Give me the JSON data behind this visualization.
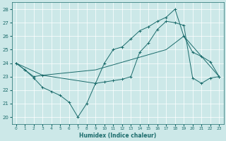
{
  "xlabel": "Humidex (Indice chaleur)",
  "bg_color": "#cce8e8",
  "grid_color": "#ffffff",
  "line_color": "#1a6b6b",
  "xlim": [
    -0.5,
    23.5
  ],
  "ylim": [
    19.5,
    28.5
  ],
  "yticks": [
    20,
    21,
    22,
    23,
    24,
    25,
    26,
    27,
    28
  ],
  "xticks": [
    0,
    1,
    2,
    3,
    4,
    5,
    6,
    7,
    8,
    9,
    10,
    11,
    12,
    13,
    14,
    15,
    16,
    17,
    18,
    19,
    20,
    21,
    22,
    23
  ],
  "line1_x": [
    0,
    1,
    2,
    3,
    4,
    5,
    6,
    7,
    8,
    9,
    10,
    11,
    12,
    13,
    14,
    15,
    16,
    17,
    18,
    19,
    20,
    21,
    22,
    23
  ],
  "line1_y": [
    24.0,
    23.5,
    22.9,
    22.2,
    21.9,
    21.6,
    21.1,
    20.0,
    21.0,
    22.5,
    24.0,
    25.0,
    25.2,
    25.8,
    26.4,
    26.7,
    27.1,
    27.4,
    28.0,
    26.0,
    24.8,
    24.5,
    24.1,
    23.0
  ],
  "line2_x": [
    0,
    1,
    2,
    3,
    9,
    10,
    11,
    12,
    13,
    14,
    15,
    16,
    17,
    18,
    19,
    20,
    21,
    22,
    23
  ],
  "line2_y": [
    24.0,
    23.5,
    23.0,
    23.1,
    22.5,
    22.6,
    22.7,
    22.8,
    23.0,
    24.8,
    25.5,
    26.5,
    27.1,
    27.0,
    26.8,
    22.9,
    22.5,
    22.9,
    23.0
  ],
  "line3_x": [
    0,
    3,
    9,
    17,
    19,
    23
  ],
  "line3_y": [
    24.0,
    23.1,
    23.5,
    25.0,
    26.0,
    23.0
  ]
}
